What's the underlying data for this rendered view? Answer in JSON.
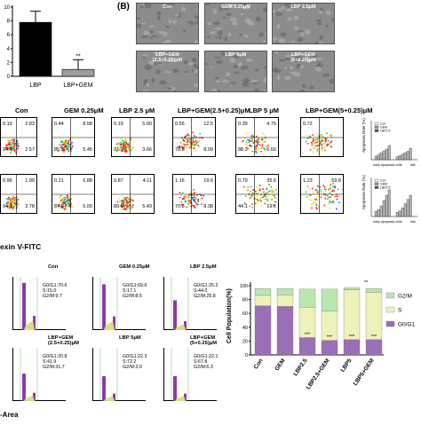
{
  "panel_b_label": "(B)",
  "bar_a": {
    "yticks": [
      "10",
      "8",
      "6",
      "4",
      "2",
      "0"
    ],
    "cats": [
      "LBP",
      "LBP+GEM"
    ],
    "sig": "**",
    "bars": [
      {
        "value": 7.8,
        "err": 1.6,
        "color": "#000000"
      },
      {
        "value": 1.0,
        "err": 1.4,
        "color": "#9e9e9e"
      }
    ],
    "ymax": 10
  },
  "micro": [
    "Con",
    "GEM 0.25μM",
    "LBP 2.5μM",
    "LBP+GEM\n(2.5+0.25)μM",
    "LBP 5μM",
    "LBP+GEM\n(5+0.25)μM"
  ],
  "flow_titles": [
    "Con",
    "GEM 0.25μM",
    "LBP 2.5 μM",
    "LBP+GEM(2.5+0.25)μM",
    "LBP 5 μM",
    "LBP+GEM(5+0.25)μM"
  ],
  "flow_row1": [
    {
      "ul": "0.19",
      "ur": "2.83",
      "ll": "94.4",
      "lr": "2.57"
    },
    {
      "ul": "0.44",
      "ur": "8.58",
      "ll": "85.5",
      "lr": "5.45"
    },
    {
      "ul": "0.19",
      "ur": "5.00",
      "ll": "91.1",
      "lr": "3.66"
    },
    {
      "ul": "0.56",
      "ur": "12.5",
      "ll": "78.8",
      "lr": "8.09"
    },
    {
      "ul": "0.39",
      "ur": "4.75",
      "ll": "88.3",
      "lr": "6.60"
    },
    {
      "ul": "0.72",
      "ur": "",
      "ll": "",
      "lr": ""
    }
  ],
  "flow_row2": [
    {
      "ul": "0.96",
      "ur": "1.99",
      "ll": "94.3",
      "lr": "2.78"
    },
    {
      "ul": "0.21",
      "ur": "6.88",
      "ll": "87.9",
      "lr": "5.00"
    },
    {
      "ul": "0.87",
      "ur": "4.11",
      "ll": "89.6",
      "lr": "5.43"
    },
    {
      "ul": "1.16",
      "ur": "19.6",
      "ll": "70.8",
      "lr": "8.38"
    },
    {
      "ul": "0.79",
      "ur": "35.6",
      "ll": "44.1",
      "lr": "19.6"
    },
    {
      "ul": "1.23",
      "ur": "59.8",
      "ll": "",
      "lr": ""
    }
  ],
  "flow_xlabel": "exin V-FITC",
  "mini_legend": [
    "Con",
    "GEM",
    "LBP2.5"
  ],
  "mini_ylabel": "Apoptosis Rate (%)",
  "mini_xlabels": [
    "early apoptosis cells",
    "late"
  ],
  "hist": [
    {
      "title": "Con",
      "lines": "G0/G1:70.6\nS:15.0\nG2/M:9.7"
    },
    {
      "title": "GEM 0.25μM",
      "lines": "G0/G1:69.6\nS:17.1\nG2/M:8.5"
    },
    {
      "title": "LBP 2.5μM",
      "lines": "G0/G1:25.2\nS:44.0\nG2/M:25.8"
    },
    {
      "title": "LBP+GEM\n(2.5+0.25)μM",
      "lines": "G0/G1:20.8\nS:41.9\nG2/M:31.7"
    },
    {
      "title": "LBP 5μM",
      "lines": "G0/G1:22.3\nS:72.2\nG2/M:3.0"
    },
    {
      "title": "LBP+GEM\n(5+0.25)μM",
      "lines": "G0/G1:22.1\nS:67.8\nG2/M:6.3"
    }
  ],
  "hist_xlabel": "-Area",
  "chart_data": {
    "type": "bar",
    "stacked": true,
    "categories": [
      "Con",
      "GEM",
      "LBP2.5",
      "LBP2.5+GEM",
      "LBP5",
      "LBP5+GEM"
    ],
    "ylabel": "Cell Population(%)",
    "ylim": [
      0,
      100
    ],
    "yticks": [
      "100",
      "80",
      "60",
      "40",
      "20",
      "0"
    ],
    "series": [
      {
        "name": "G0/G1",
        "values": [
          71,
          70,
          25,
          21,
          22,
          22
        ],
        "color": "#9b6fb8"
      },
      {
        "name": "S",
        "values": [
          15,
          17,
          44,
          42,
          72,
          68
        ],
        "color": "#ecf2b8"
      },
      {
        "name": "G2/M",
        "values": [
          10,
          9,
          26,
          32,
          3,
          6
        ],
        "color": "#b8e8b0"
      }
    ],
    "legend": "right",
    "sig_marks": [
      "***",
      "***",
      "***",
      "***",
      "**"
    ]
  }
}
